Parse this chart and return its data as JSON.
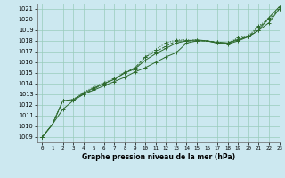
{
  "title": "Graphe pression niveau de la mer (hPa)",
  "background_color": "#cce8f0",
  "grid_color": "#99ccbb",
  "line_color": "#2d6a2d",
  "xlim": [
    -0.5,
    23
  ],
  "ylim": [
    1008.5,
    1021.5
  ],
  "yticks": [
    1009,
    1010,
    1011,
    1012,
    1013,
    1014,
    1015,
    1016,
    1017,
    1018,
    1019,
    1020,
    1021
  ],
  "xticks": [
    0,
    1,
    2,
    3,
    4,
    5,
    6,
    7,
    8,
    9,
    10,
    11,
    12,
    13,
    14,
    15,
    16,
    17,
    18,
    19,
    20,
    21,
    22,
    23
  ],
  "curves": [
    {
      "y": [
        1009.0,
        1010.2,
        1011.6,
        1012.4,
        1013.0,
        1013.4,
        1013.8,
        1014.2,
        1014.6,
        1015.1,
        1015.5,
        1016.0,
        1016.5,
        1016.9,
        1017.8,
        1018.0,
        1018.0,
        1017.8,
        1017.8,
        1018.1,
        1018.4,
        1019.0,
        1020.2,
        1021.2
      ],
      "linestyle": "-",
      "marker": "+"
    },
    {
      "y": [
        1009.0,
        1010.2,
        1012.4,
        1012.5,
        1013.0,
        1013.5,
        1014.0,
        1014.5,
        1015.0,
        1015.5,
        1016.5,
        1017.0,
        1017.5,
        1018.0,
        1018.0,
        1018.0,
        1018.0,
        1017.9,
        1017.8,
        1018.2,
        1018.4,
        1019.3,
        1020.0,
        1021.0
      ],
      "linestyle": "--",
      "marker": "+"
    },
    {
      "y": [
        1009.0,
        1010.2,
        1012.4,
        1012.5,
        1013.1,
        1013.6,
        1014.0,
        1014.4,
        1015.0,
        1015.4,
        1016.2,
        1016.8,
        1017.3,
        1017.8,
        1018.0,
        1018.1,
        1018.0,
        1017.8,
        1017.7,
        1018.0,
        1018.4,
        1019.0,
        1019.7,
        1021.0
      ],
      "linestyle": "-",
      "marker": "+"
    },
    {
      "y": [
        1009.0,
        1010.2,
        1012.4,
        1012.5,
        1013.2,
        1013.7,
        1014.1,
        1014.5,
        1015.1,
        1015.3,
        1016.5,
        1017.2,
        1017.8,
        1018.1,
        1018.1,
        1018.1,
        1018.0,
        1017.9,
        1017.8,
        1018.3,
        1018.5,
        1019.4,
        1020.1,
        1021.2
      ],
      "linestyle": ":",
      "marker": "+"
    }
  ]
}
